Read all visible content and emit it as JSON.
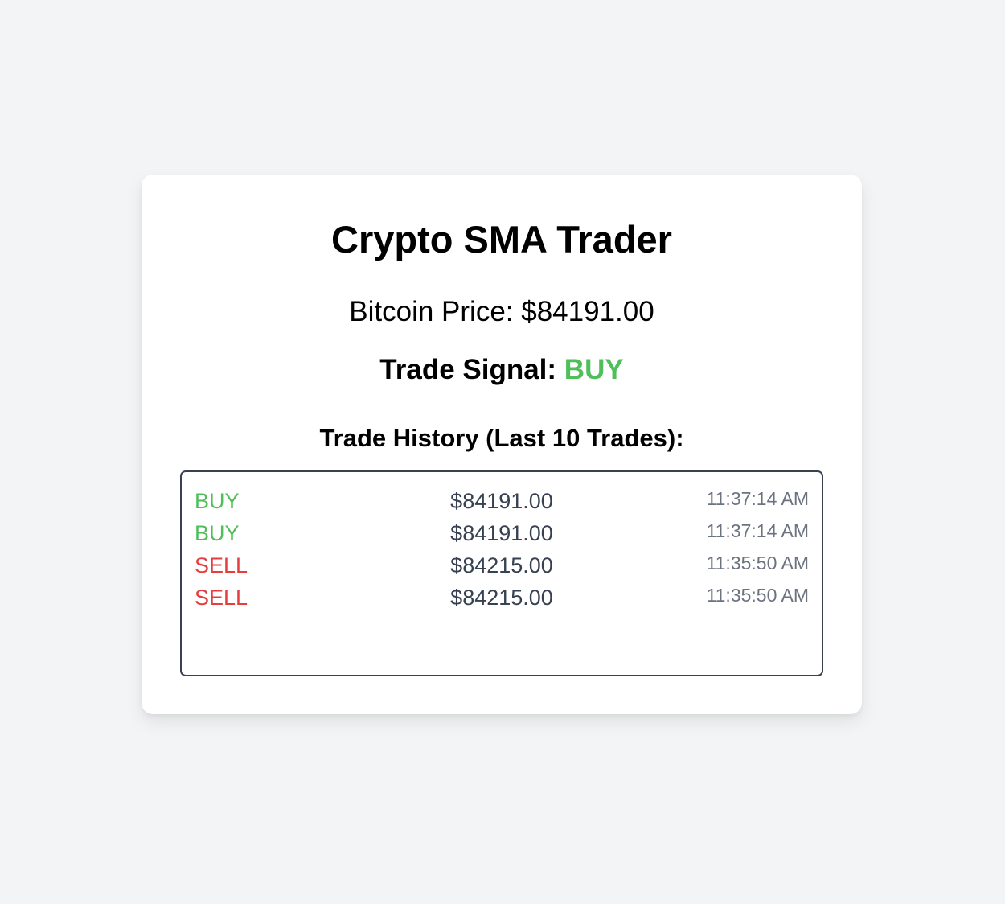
{
  "app": {
    "title": "Crypto SMA Trader"
  },
  "price": {
    "label": "Bitcoin Price: $84191.00"
  },
  "signal": {
    "label": "Trade Signal:",
    "value": "BUY",
    "value_color": "#4fbf5a"
  },
  "history": {
    "title": "Trade History (Last 10 Trades):",
    "trades": [
      {
        "action": "BUY",
        "amount": "$84191.00",
        "time": "11:37:14 AM"
      },
      {
        "action": "BUY",
        "amount": "$84191.00",
        "time": "11:37:14 AM"
      },
      {
        "action": "SELL",
        "amount": "$84215.00",
        "time": "11:35:50 AM"
      },
      {
        "action": "SELL",
        "amount": "$84215.00",
        "time": "11:35:50 AM"
      }
    ]
  },
  "colors": {
    "buy": "#4fbf5a",
    "sell": "#e53e3e",
    "page_background": "#f3f4f6"
  }
}
